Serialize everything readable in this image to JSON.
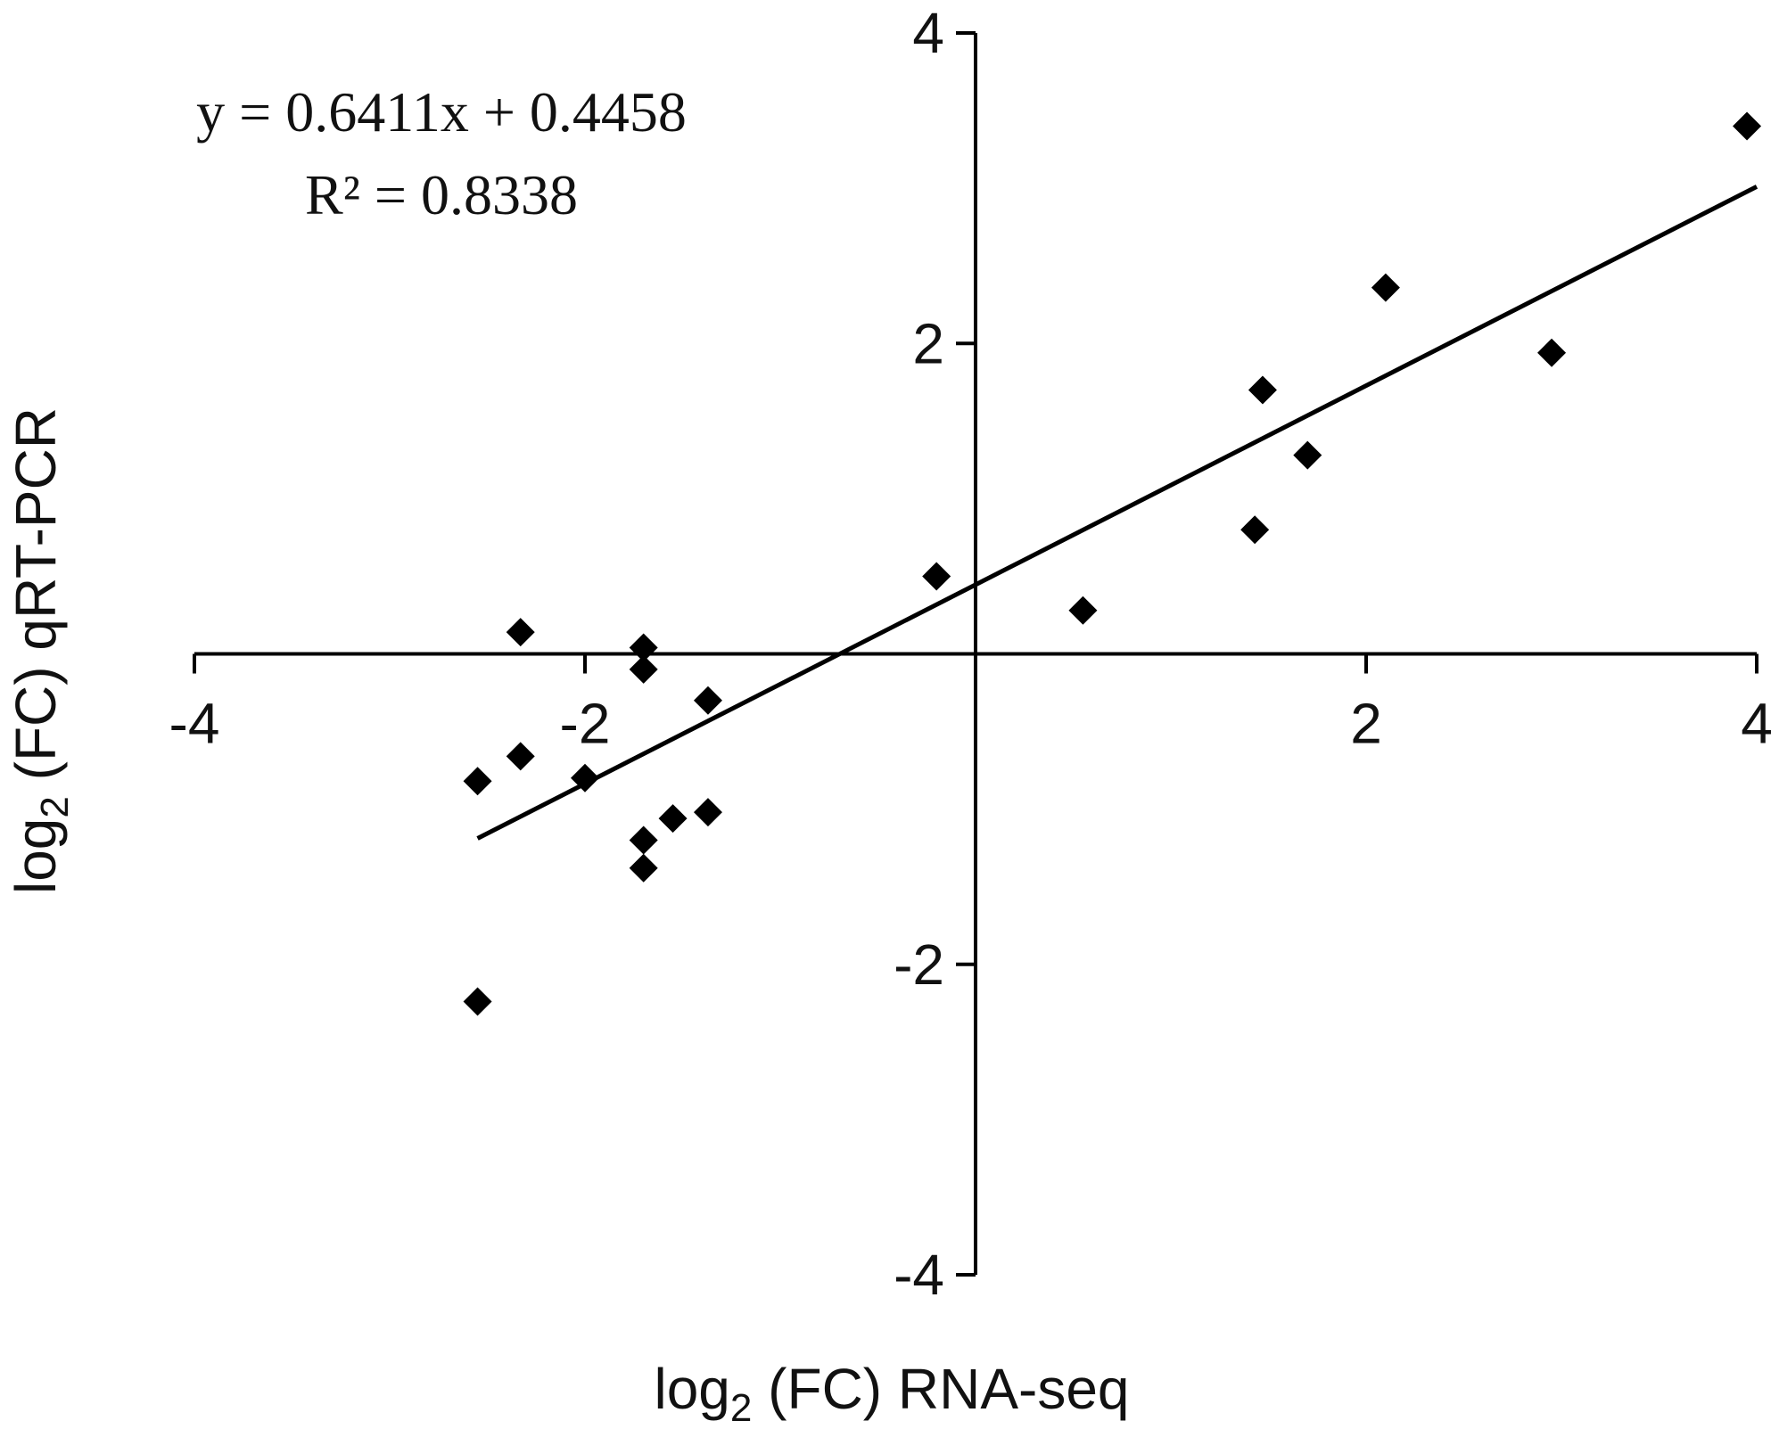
{
  "chart_data": {
    "type": "scatter",
    "title": "",
    "xlabel": "log2 (FC) RNA-seq",
    "ylabel": "log2 (FC) qRT-PCR",
    "xlabel_parts": {
      "pre": "log",
      "sub": "2",
      "post": " (FC) RNA-seq"
    },
    "ylabel_parts": {
      "pre": "log",
      "sub": "2",
      "post": " (FC) qRT-PCR"
    },
    "xlim": [
      -4,
      4
    ],
    "ylim": [
      -4,
      4
    ],
    "xticks": [
      -4,
      -2,
      2,
      4
    ],
    "yticks": [
      4,
      2,
      -2,
      -4
    ],
    "xtick_labels": [
      "-4",
      "-2",
      "2",
      "4"
    ],
    "ytick_labels": [
      "4",
      "2",
      "-2",
      "-4"
    ],
    "grid": false,
    "legend": "none",
    "marker": "diamond",
    "marker_color": "#000000",
    "trendline": {
      "slope": 0.6411,
      "intercept": 0.4458,
      "x_range": [
        -2.55,
        4.0
      ],
      "equation": "y = 0.6411x + 0.4458",
      "r2_label": "R² = 0.8338"
    },
    "points": [
      {
        "x": -2.55,
        "y": -0.82
      },
      {
        "x": -2.55,
        "y": -2.24
      },
      {
        "x": -2.33,
        "y": 0.14
      },
      {
        "x": -2.33,
        "y": -0.66
      },
      {
        "x": -2.0,
        "y": -0.8
      },
      {
        "x": -1.7,
        "y": 0.04
      },
      {
        "x": -1.7,
        "y": -0.1
      },
      {
        "x": -1.7,
        "y": -1.2
      },
      {
        "x": -1.7,
        "y": -1.38
      },
      {
        "x": -1.55,
        "y": -1.06
      },
      {
        "x": -1.37,
        "y": -0.3
      },
      {
        "x": -1.37,
        "y": -1.02
      },
      {
        "x": -0.2,
        "y": 0.5
      },
      {
        "x": 0.55,
        "y": 0.28
      },
      {
        "x": 1.43,
        "y": 0.8
      },
      {
        "x": 1.47,
        "y": 1.7
      },
      {
        "x": 1.7,
        "y": 1.28
      },
      {
        "x": 2.1,
        "y": 2.36
      },
      {
        "x": 2.95,
        "y": 1.94
      },
      {
        "x": 3.95,
        "y": 3.4
      }
    ]
  }
}
